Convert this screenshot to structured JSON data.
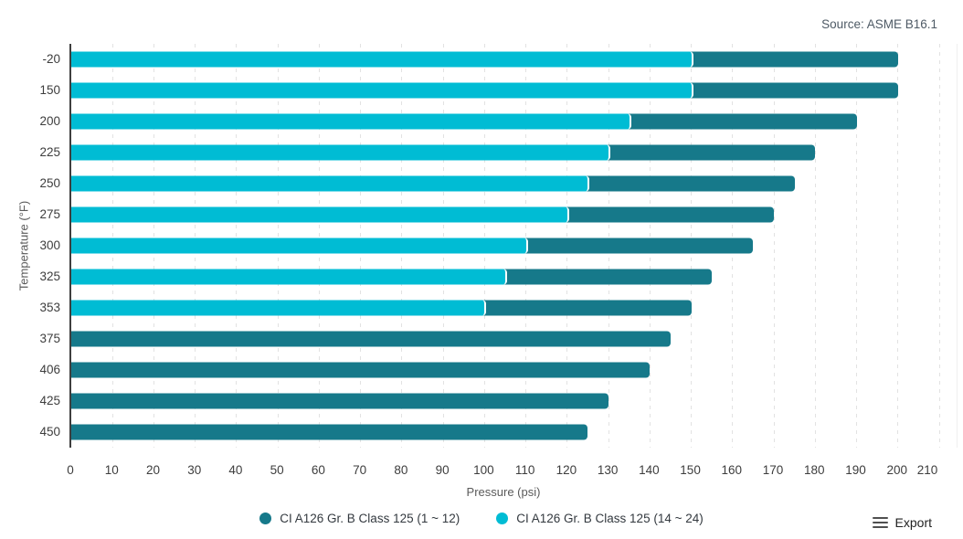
{
  "source": "Source: ASME B16.1",
  "export": {
    "label": "Export"
  },
  "chart_data": {
    "type": "bar",
    "orientation": "horizontal",
    "title": "",
    "xlabel": "Pressure (psi)",
    "ylabel": "Temperature (°F)",
    "xlim": [
      0,
      210
    ],
    "x_ticks": [
      0,
      10,
      20,
      30,
      40,
      50,
      60,
      70,
      80,
      90,
      100,
      110,
      120,
      130,
      140,
      150,
      160,
      170,
      180,
      190,
      200,
      210
    ],
    "categories": [
      "-20",
      "150",
      "200",
      "225",
      "250",
      "275",
      "300",
      "325",
      "353",
      "375",
      "406",
      "425",
      "450"
    ],
    "series": [
      {
        "name": "CI A126 Gr. B Class 125 (1 ~ 12)",
        "color": "#16798A",
        "values": [
          200,
          200,
          190,
          180,
          175,
          170,
          165,
          155,
          150,
          145,
          140,
          130,
          125
        ]
      },
      {
        "name": "CI A126 Gr. B Class 125 (14 ~ 24)",
        "color": "#00BCD4",
        "values": [
          150,
          150,
          135,
          130,
          125,
          120,
          110,
          105,
          100,
          null,
          null,
          null,
          null
        ]
      }
    ],
    "legend_position": "bottom",
    "grid": "vertical-dashed"
  },
  "colors": {
    "series1": "#16798A",
    "series2": "#00BCD4",
    "grid": "#e2e2e2",
    "axis_line": "#3e3e3e",
    "tick_text": "#3d3d3d",
    "axis_title_text": "#5a5a5a",
    "source_text": "#4e5a65",
    "legend_text": "#33393f",
    "export_icon": "#4f4f4f"
  }
}
